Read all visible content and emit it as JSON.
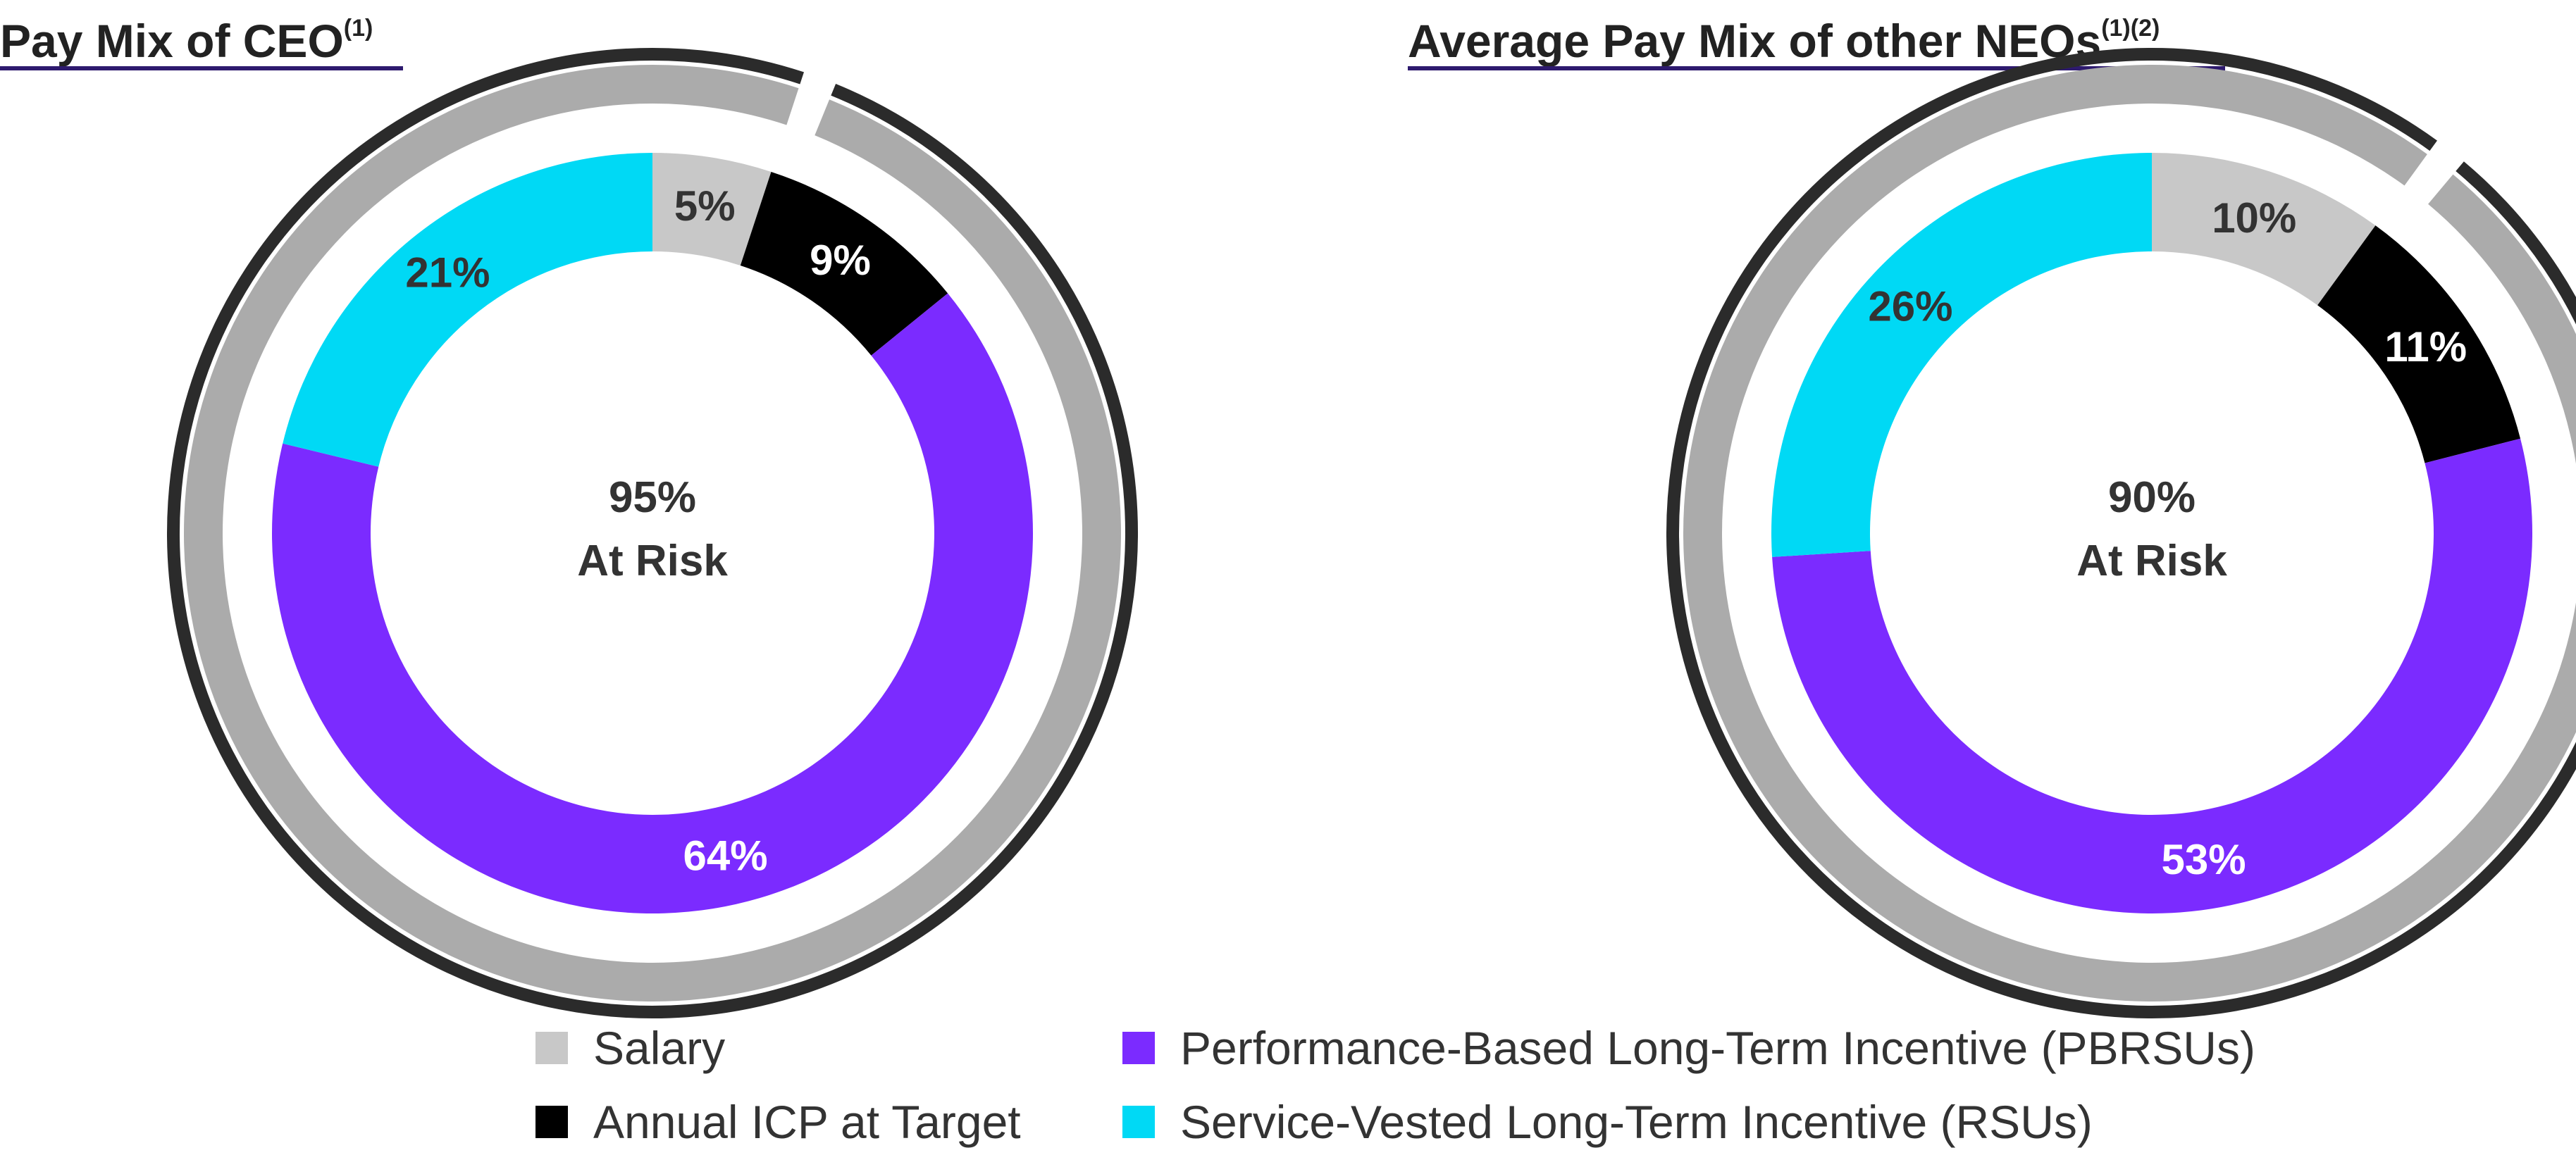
{
  "chart_data": [
    {
      "type": "pie",
      "title": "Pay Mix of CEO",
      "title_superscript": "(1)",
      "center_value": "95%",
      "center_label": "At Risk",
      "categories": [
        "Salary",
        "Annual ICP at Target",
        "Performance-Based Long-Term Incentive (PBRSUs)",
        "Service-Vested Long-Term Incentive (RSUs)"
      ],
      "values": [
        5,
        9,
        64,
        21
      ],
      "labels": [
        "5%",
        "9%",
        "64%",
        "21%"
      ],
      "at_risk_arc": 95
    },
    {
      "type": "pie",
      "title": "Average Pay Mix of other NEOs",
      "title_superscript": "(1)(2)",
      "center_value": "90%",
      "center_label": "At Risk",
      "categories": [
        "Salary",
        "Annual ICP at Target",
        "Performance-Based Long-Term Incentive (PBRSUs)",
        "Service-Vested Long-Term Incentive (RSUs)"
      ],
      "values": [
        10,
        11,
        53,
        26
      ],
      "labels": [
        "10%",
        "11%",
        "53%",
        "26%"
      ],
      "at_risk_arc": 90
    }
  ],
  "colors": {
    "salary": "#c8c8c8",
    "icp": "#000000",
    "pbrsu": "#7b2bff",
    "rsu": "#00d9f5",
    "outer_ring": "#ababab",
    "outer_border": "#2b2b2b",
    "title_rule": "#2e1a6e"
  },
  "legend": [
    {
      "label": "Salary",
      "color": "#c8c8c8"
    },
    {
      "label": "Annual ICP at Target",
      "color": "#000000"
    },
    {
      "label": "Performance-Based Long-Term Incentive (PBRSUs)",
      "color": "#7b2bff"
    },
    {
      "label": "Service-Vested Long-Term Incentive (RSUs)",
      "color": "#00d9f5"
    }
  ]
}
